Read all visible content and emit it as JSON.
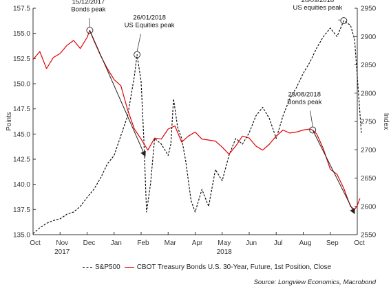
{
  "chart_data": {
    "type": "line",
    "title": "",
    "ylabel_left": "Points",
    "ylabel_right": "Index",
    "ylim_left": [
      135.0,
      157.5
    ],
    "ylim_right": [
      2550,
      2950
    ],
    "yticks_left": [
      "135.0",
      "137.5",
      "140.0",
      "142.5",
      "145.0",
      "147.5",
      "150.0",
      "152.5",
      "155.0",
      "157.5"
    ],
    "yticks_right": [
      "2550",
      "2600",
      "2650",
      "2700",
      "2750",
      "2800",
      "2850",
      "2900",
      "2950"
    ],
    "month_labels": [
      "Oct",
      "Nov",
      "Dec",
      "Jan",
      "Feb",
      "Mar",
      "Apr",
      "May",
      "Jun",
      "Jul",
      "Aug",
      "Sep",
      "Oct"
    ],
    "year_labels": [
      {
        "label": "2017",
        "month_index": 1
      },
      {
        "label": "2018",
        "month_index": 7
      }
    ],
    "grid": false,
    "legend_position": "bottom",
    "series": [
      {
        "name": "S&P500",
        "axis": "right",
        "color": "#111111",
        "style": "dashed",
        "points": [
          [
            0.0,
            2552
          ],
          [
            0.25,
            2562
          ],
          [
            0.5,
            2570
          ],
          [
            0.75,
            2575
          ],
          [
            1.0,
            2578
          ],
          [
            1.25,
            2586
          ],
          [
            1.5,
            2590
          ],
          [
            1.75,
            2600
          ],
          [
            2.0,
            2616
          ],
          [
            2.25,
            2630
          ],
          [
            2.5,
            2650
          ],
          [
            2.75,
            2675
          ],
          [
            3.0,
            2690
          ],
          [
            3.25,
            2725
          ],
          [
            3.5,
            2760
          ],
          [
            3.75,
            2830
          ],
          [
            3.85,
            2868
          ],
          [
            4.0,
            2820
          ],
          [
            4.1,
            2720
          ],
          [
            4.2,
            2590
          ],
          [
            4.35,
            2640
          ],
          [
            4.5,
            2720
          ],
          [
            4.75,
            2710
          ],
          [
            5.0,
            2690
          ],
          [
            5.1,
            2710
          ],
          [
            5.2,
            2790
          ],
          [
            5.35,
            2740
          ],
          [
            5.5,
            2720
          ],
          [
            5.65,
            2680
          ],
          [
            5.85,
            2610
          ],
          [
            6.0,
            2590
          ],
          [
            6.25,
            2630
          ],
          [
            6.5,
            2600
          ],
          [
            6.75,
            2665
          ],
          [
            7.0,
            2645
          ],
          [
            7.25,
            2690
          ],
          [
            7.5,
            2720
          ],
          [
            7.75,
            2710
          ],
          [
            8.0,
            2730
          ],
          [
            8.25,
            2760
          ],
          [
            8.5,
            2775
          ],
          [
            8.75,
            2755
          ],
          [
            9.0,
            2720
          ],
          [
            9.25,
            2760
          ],
          [
            9.5,
            2790
          ],
          [
            9.75,
            2810
          ],
          [
            10.0,
            2835
          ],
          [
            10.25,
            2855
          ],
          [
            10.5,
            2880
          ],
          [
            10.75,
            2900
          ],
          [
            11.0,
            2915
          ],
          [
            11.25,
            2900
          ],
          [
            11.5,
            2928
          ],
          [
            11.75,
            2920
          ],
          [
            11.9,
            2895
          ],
          [
            12.0,
            2830
          ],
          [
            12.15,
            2730
          ]
        ]
      },
      {
        "name": "CBOT Treasury Bonds U.S. 30-Year, Future, 1st Position, Close",
        "axis": "left",
        "color": "#e00000",
        "style": "solid",
        "points": [
          [
            0.0,
            152.4
          ],
          [
            0.25,
            153.2
          ],
          [
            0.5,
            151.5
          ],
          [
            0.75,
            152.6
          ],
          [
            1.0,
            153.0
          ],
          [
            1.25,
            153.8
          ],
          [
            1.5,
            154.3
          ],
          [
            1.75,
            153.5
          ],
          [
            2.0,
            154.6
          ],
          [
            2.1,
            155.3
          ],
          [
            2.25,
            154.3
          ],
          [
            2.5,
            152.8
          ],
          [
            2.75,
            151.5
          ],
          [
            3.0,
            150.4
          ],
          [
            3.25,
            149.8
          ],
          [
            3.5,
            147.4
          ],
          [
            3.75,
            145.5
          ],
          [
            4.0,
            144.5
          ],
          [
            4.25,
            143.4
          ],
          [
            4.5,
            144.6
          ],
          [
            4.75,
            144.5
          ],
          [
            5.0,
            145.5
          ],
          [
            5.25,
            145.8
          ],
          [
            5.5,
            144.2
          ],
          [
            5.75,
            144.8
          ],
          [
            6.0,
            145.2
          ],
          [
            6.25,
            144.5
          ],
          [
            6.5,
            144.4
          ],
          [
            6.75,
            144.3
          ],
          [
            7.0,
            143.7
          ],
          [
            7.25,
            143.0
          ],
          [
            7.5,
            143.8
          ],
          [
            7.75,
            144.8
          ],
          [
            8.0,
            144.6
          ],
          [
            8.25,
            143.8
          ],
          [
            8.5,
            143.4
          ],
          [
            8.75,
            144.0
          ],
          [
            9.0,
            144.8
          ],
          [
            9.25,
            145.4
          ],
          [
            9.5,
            145.1
          ],
          [
            9.75,
            145.2
          ],
          [
            10.0,
            145.4
          ],
          [
            10.25,
            145.5
          ],
          [
            10.35,
            145.4
          ],
          [
            10.5,
            145.0
          ],
          [
            10.75,
            143.5
          ],
          [
            11.0,
            141.5
          ],
          [
            11.25,
            141.0
          ],
          [
            11.5,
            139.6
          ],
          [
            11.75,
            137.8
          ],
          [
            11.9,
            137.5
          ],
          [
            12.0,
            137.9
          ],
          [
            12.1,
            138.6
          ]
        ]
      }
    ],
    "annotations": [
      {
        "lines": [
          "15/12/2017",
          "Bonds peak"
        ],
        "x": 2.1,
        "y": 155.3,
        "axis": "left"
      },
      {
        "lines": [
          "26/01/2018",
          "US Equities peak"
        ],
        "x": 3.85,
        "y": 2868,
        "axis": "right"
      },
      {
        "lines": [
          "20/09/2018",
          "US equities peak"
        ],
        "x": 11.5,
        "y": 2928,
        "axis": "right"
      },
      {
        "lines": [
          "23/08/2018",
          "Bonds peak"
        ],
        "x": 10.35,
        "y": 145.4,
        "axis": "left"
      }
    ],
    "trend_arrows": [
      {
        "from": [
          2.1,
          155.3
        ],
        "to": [
          4.15,
          142.8
        ],
        "axis": "left"
      },
      {
        "from": [
          10.35,
          145.4
        ],
        "to": [
          11.9,
          137.1
        ],
        "axis": "left"
      }
    ]
  },
  "source_text": "Source: Longview Economics, Macrobond"
}
